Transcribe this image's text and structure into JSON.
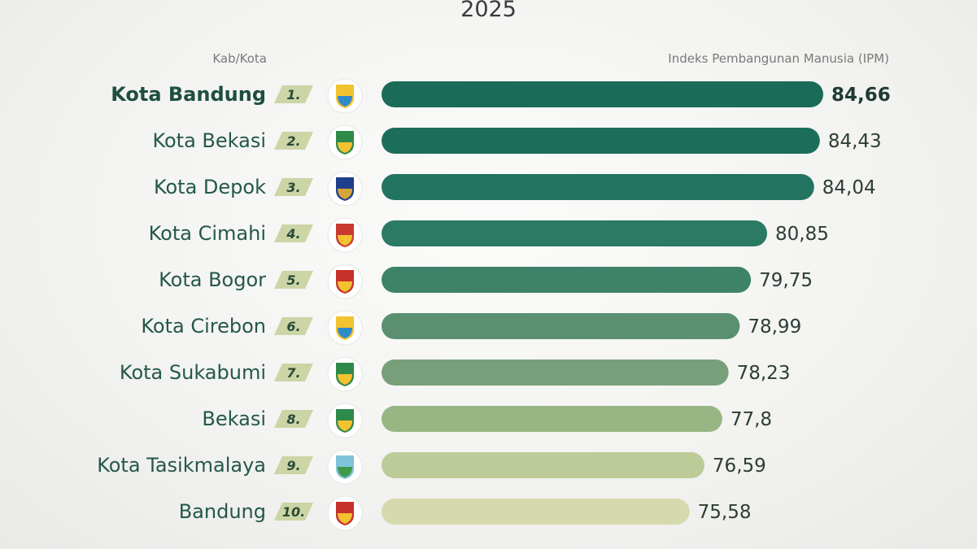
{
  "chart_data": {
    "type": "bar",
    "orientation": "horizontal",
    "title": "2025",
    "category_header": "Kab/Kota",
    "value_header": "Indeks Pembangunan Manusia (IPM)",
    "categories": [
      "Kota Bandung",
      "Kota Bekasi",
      "Kota Depok",
      "Kota Cimahi",
      "Kota Bogor",
      "Kota Cirebon",
      "Kota Sukabumi",
      "Bekasi",
      "Kota Tasikmalaya",
      "Bandung"
    ],
    "ranks": [
      "1.",
      "2.",
      "3.",
      "4.",
      "5.",
      "6.",
      "7.",
      "8.",
      "9.",
      "10."
    ],
    "values": [
      84.66,
      84.43,
      84.04,
      80.85,
      79.75,
      78.99,
      78.23,
      77.8,
      76.59,
      75.58
    ],
    "value_labels": [
      "84,66",
      "84,43",
      "84,04",
      "80,85",
      "79,75",
      "78,99",
      "78,23",
      "77,8",
      "76,59",
      "75,58"
    ],
    "bar_colors": [
      "#1a6b58",
      "#1c6e5a",
      "#227360",
      "#2b7a64",
      "#3e8369",
      "#5a9070",
      "#77a07a",
      "#98b683",
      "#bccb98",
      "#d6d9ad"
    ],
    "xlim": [
      54.66,
      84.66
    ]
  },
  "colors": {
    "rank_badge": "#cbd5a6",
    "highlight_text": "#1e4e41"
  },
  "emblem_icons": [
    "kota-bandung-emblem-icon",
    "kota-bekasi-emblem-icon",
    "kota-depok-emblem-icon",
    "kota-cimahi-emblem-icon",
    "kota-bogor-emblem-icon",
    "kota-cirebon-emblem-icon",
    "kota-sukabumi-emblem-icon",
    "bekasi-emblem-icon",
    "kota-tasikmalaya-emblem-icon",
    "bandung-emblem-icon"
  ]
}
